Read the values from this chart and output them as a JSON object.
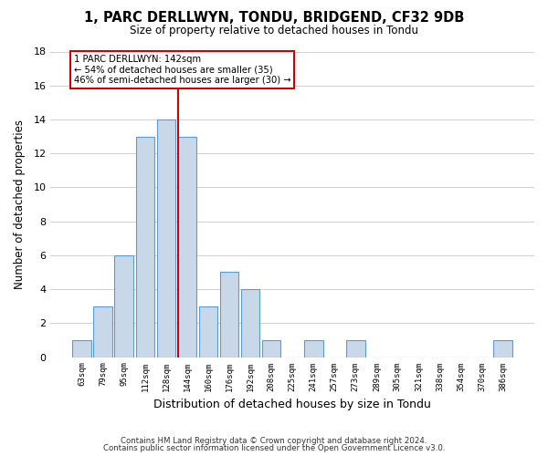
{
  "title": "1, PARC DERLLWYN, TONDU, BRIDGEND, CF32 9DB",
  "subtitle": "Size of property relative to detached houses in Tondu",
  "xlabel": "Distribution of detached houses by size in Tondu",
  "ylabel": "Number of detached properties",
  "bar_color": "#c8d8e8",
  "bar_edge_color": "#5b9bd5",
  "bin_labels": [
    "63sqm",
    "79sqm",
    "95sqm",
    "112sqm",
    "128sqm",
    "144sqm",
    "160sqm",
    "176sqm",
    "192sqm",
    "208sqm",
    "225sqm",
    "241sqm",
    "257sqm",
    "273sqm",
    "289sqm",
    "305sqm",
    "321sqm",
    "338sqm",
    "354sqm",
    "370sqm",
    "386sqm"
  ],
  "bar_heights": [
    1,
    3,
    6,
    13,
    14,
    13,
    3,
    5,
    4,
    1,
    0,
    1,
    0,
    1,
    0,
    0,
    0,
    0,
    0,
    0,
    1
  ],
  "ylim": [
    0,
    18
  ],
  "yticks": [
    0,
    2,
    4,
    6,
    8,
    10,
    12,
    14,
    16,
    18
  ],
  "marker_idx": 5,
  "annotation_title": "1 PARC DERLLWYN: 142sqm",
  "annotation_line1": "← 54% of detached houses are smaller (35)",
  "annotation_line2": "46% of semi-detached houses are larger (30) →",
  "marker_line_color": "#cc0000",
  "annotation_box_edge": "#cc0000",
  "footer1": "Contains HM Land Registry data © Crown copyright and database right 2024.",
  "footer2": "Contains public sector information licensed under the Open Government Licence v3.0.",
  "background_color": "#ffffff",
  "grid_color": "#d0d0d0"
}
